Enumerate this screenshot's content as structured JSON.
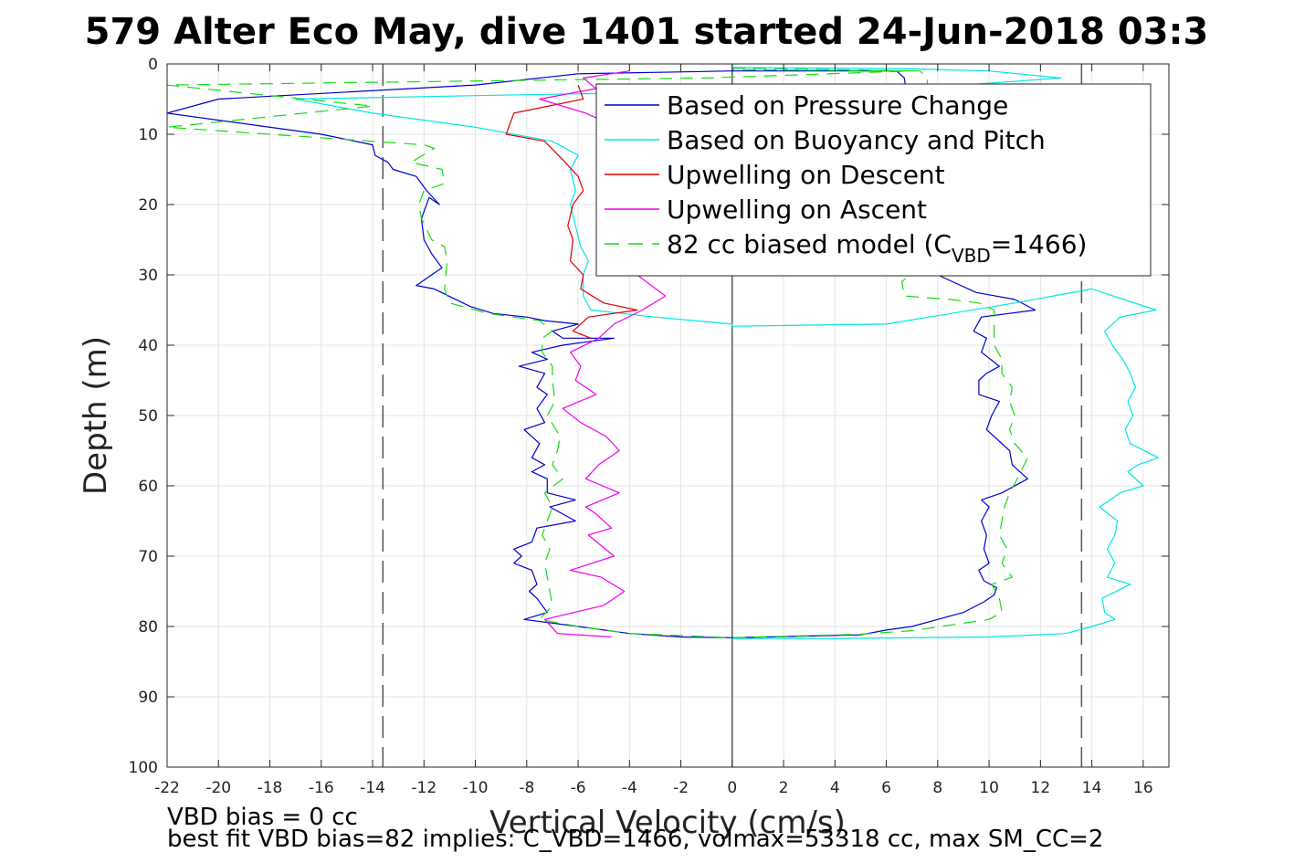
{
  "chart_data": {
    "type": "line",
    "title": "579 Alter Eco May, dive 1401 started 24-Jun-2018 03:3",
    "xlabel": "Vertical Velocity (cm/s)",
    "ylabel": "Depth (m)",
    "xlim": [
      -22,
      17
    ],
    "ylim": [
      0,
      100
    ],
    "y_reversed": true,
    "x_ticks": [
      -22,
      -20,
      -18,
      -16,
      -14,
      -12,
      -10,
      -8,
      -6,
      -4,
      -2,
      0,
      2,
      4,
      6,
      8,
      10,
      12,
      14,
      16
    ],
    "y_ticks": [
      0,
      10,
      20,
      30,
      40,
      50,
      60,
      70,
      80,
      90,
      100
    ],
    "grid": true,
    "legend_position": "top-right",
    "reference_lines": {
      "dashed_x": [
        -13.6,
        13.6
      ],
      "zero_x": 0,
      "color": "#555555"
    },
    "footnotes": [
      "VBD bias = 0 cc",
      "best fit VBD bias=82 implies: C_VBD=1466, volmax=53318 cc, max SM_CC=2"
    ],
    "legend": [
      {
        "key": "pressure",
        "label": "Based on Pressure Change"
      },
      {
        "key": "buoyancy",
        "label": "Based on Buoyancy and Pitch"
      },
      {
        "key": "up_desc",
        "label": "Upwelling on Descent"
      },
      {
        "key": "up_asc",
        "label": "Upwelling on Ascent"
      },
      {
        "key": "model",
        "label_pre": "82 cc biased model (C",
        "label_sub": "VBD",
        "label_post": "=1466)"
      }
    ],
    "series": [
      {
        "name": "Based on Pressure Change",
        "color": "#0000cc",
        "dash": "",
        "points": [
          [
            0,
            1
          ],
          [
            -6,
            1.4
          ],
          [
            -10,
            3
          ],
          [
            -15,
            4
          ],
          [
            -20,
            5
          ],
          [
            -22,
            7
          ],
          [
            -20,
            8
          ],
          [
            -16,
            10
          ],
          [
            -14,
            11.5
          ],
          [
            -13.9,
            13
          ],
          [
            -13.4,
            14
          ],
          [
            -13.2,
            15
          ],
          [
            -12.3,
            16
          ],
          [
            -11.9,
            18
          ],
          [
            -11.4,
            20
          ],
          [
            -11.8,
            19
          ],
          [
            -12.1,
            22
          ],
          [
            -12,
            25
          ],
          [
            -11.7,
            27
          ],
          [
            -11.3,
            29
          ],
          [
            -11.7,
            30
          ],
          [
            -12.3,
            31.5
          ],
          [
            -11.6,
            32
          ],
          [
            -10.2,
            34.5
          ],
          [
            -9.3,
            35.5
          ],
          [
            -8,
            36
          ],
          [
            -7.3,
            36.5
          ],
          [
            -6,
            37
          ],
          [
            -7,
            38
          ],
          [
            -6.6,
            39
          ],
          [
            -4.6,
            39
          ],
          [
            -6.6,
            40
          ],
          [
            -7.8,
            41
          ],
          [
            -7.2,
            42
          ],
          [
            -8.3,
            43
          ],
          [
            -7.3,
            44
          ],
          [
            -7.6,
            46
          ],
          [
            -7.2,
            47
          ],
          [
            -7.6,
            49
          ],
          [
            -7.3,
            51
          ],
          [
            -8.1,
            52
          ],
          [
            -7.5,
            54
          ],
          [
            -7.8,
            56
          ],
          [
            -7.3,
            57
          ],
          [
            -7.8,
            58
          ],
          [
            -7.2,
            59
          ],
          [
            -7.2,
            61
          ],
          [
            -6.1,
            62
          ],
          [
            -7.1,
            63
          ],
          [
            -6.1,
            65
          ],
          [
            -7.6,
            66
          ],
          [
            -7.8,
            68
          ],
          [
            -8.5,
            69
          ],
          [
            -8.2,
            70
          ],
          [
            -8.5,
            71
          ],
          [
            -7.8,
            72
          ],
          [
            -7.6,
            74
          ],
          [
            -7.9,
            75
          ],
          [
            -7.6,
            76
          ],
          [
            -7.2,
            78
          ],
          [
            -8.1,
            79
          ],
          [
            -6,
            80
          ],
          [
            -4,
            81
          ],
          [
            -2,
            81.5
          ],
          [
            0,
            81.6
          ],
          [
            5,
            81.2
          ],
          [
            6,
            80.5
          ],
          [
            7,
            80
          ],
          [
            8,
            79
          ],
          [
            9,
            78
          ],
          [
            9.8,
            76.5
          ],
          [
            10.2,
            75.5
          ],
          [
            10.3,
            74.5
          ],
          [
            9.8,
            73.5
          ],
          [
            9.6,
            72
          ],
          [
            10,
            71
          ],
          [
            9.8,
            69
          ],
          [
            9.9,
            67
          ],
          [
            9.7,
            65
          ],
          [
            10,
            63
          ],
          [
            9.7,
            62
          ],
          [
            10.5,
            61
          ],
          [
            11.5,
            59
          ],
          [
            10.9,
            57
          ],
          [
            10.8,
            55
          ],
          [
            10.2,
            53
          ],
          [
            9.9,
            52
          ],
          [
            10.1,
            50
          ],
          [
            10.4,
            48
          ],
          [
            9.6,
            47
          ],
          [
            9.6,
            45
          ],
          [
            9.9,
            44
          ],
          [
            10.4,
            43
          ],
          [
            9.7,
            41
          ],
          [
            9.9,
            39
          ],
          [
            9.4,
            38
          ],
          [
            9.7,
            36
          ],
          [
            11.8,
            35
          ],
          [
            11,
            33.5
          ],
          [
            9.5,
            32.5
          ],
          [
            8,
            30
          ],
          [
            7,
            28
          ],
          [
            6.5,
            25
          ],
          [
            6.7,
            20
          ],
          [
            7,
            10
          ],
          [
            6.7,
            2
          ],
          [
            6.4,
            1
          ],
          [
            0,
            1
          ]
        ]
      },
      {
        "name": "Based on Buoyancy and Pitch",
        "color": "#00e5e5",
        "dash": "",
        "points": [
          [
            0,
            0.5
          ],
          [
            7,
            0.7
          ],
          [
            10,
            1
          ],
          [
            12.8,
            2
          ],
          [
            9,
            3
          ],
          [
            5,
            3.5
          ],
          [
            -2,
            4
          ],
          [
            -10,
            4.5
          ],
          [
            -17,
            5
          ],
          [
            -14,
            7
          ],
          [
            -10,
            9
          ],
          [
            -7,
            11
          ],
          [
            -6,
            13
          ],
          [
            -6.3,
            15
          ],
          [
            -6.1,
            18
          ],
          [
            -6.3,
            20
          ],
          [
            -6.1,
            23
          ],
          [
            -5.9,
            26
          ],
          [
            -5.6,
            28
          ],
          [
            -5.8,
            30
          ],
          [
            -5.8,
            33
          ],
          [
            -5.5,
            35
          ],
          [
            -3,
            36
          ],
          [
            0,
            37
          ],
          [
            0,
            37.3
          ],
          [
            6,
            37
          ],
          [
            11,
            34
          ],
          [
            12.5,
            33
          ],
          [
            14,
            32
          ],
          [
            16.5,
            35
          ],
          [
            15.1,
            36
          ],
          [
            14.5,
            38
          ],
          [
            14.8,
            40
          ],
          [
            15.2,
            42
          ],
          [
            15.5,
            44
          ],
          [
            15.7,
            46
          ],
          [
            15.4,
            48
          ],
          [
            15.6,
            50
          ],
          [
            15.3,
            52
          ],
          [
            15.5,
            54
          ],
          [
            16.6,
            56
          ],
          [
            15.8,
            57
          ],
          [
            15.4,
            58
          ],
          [
            16,
            60
          ],
          [
            15.1,
            61
          ],
          [
            14.3,
            63
          ],
          [
            15,
            65
          ],
          [
            14.9,
            67
          ],
          [
            14.6,
            69
          ],
          [
            14.9,
            71
          ],
          [
            14.6,
            73
          ],
          [
            15.5,
            74
          ],
          [
            14.4,
            76
          ],
          [
            14.5,
            78
          ],
          [
            14.9,
            79
          ],
          [
            14,
            80
          ],
          [
            13,
            81
          ],
          [
            10,
            81.5
          ],
          [
            4,
            81.7
          ],
          [
            0,
            81.7
          ]
        ]
      },
      {
        "name": "Upwelling on Descent",
        "color": "#e00000",
        "dash": "",
        "points": [
          [
            -6,
            3
          ],
          [
            -5.8,
            5
          ],
          [
            -8.5,
            7
          ],
          [
            -8.8,
            10
          ],
          [
            -7.3,
            11
          ],
          [
            -6.5,
            14
          ],
          [
            -6,
            16
          ],
          [
            -5.8,
            18
          ],
          [
            -6.2,
            20
          ],
          [
            -6.4,
            23
          ],
          [
            -6.2,
            25
          ],
          [
            -6.3,
            28
          ],
          [
            -5.8,
            30
          ],
          [
            -5.9,
            32
          ],
          [
            -5,
            34
          ],
          [
            -3.7,
            35
          ],
          [
            -5.6,
            36
          ],
          [
            -6.2,
            38
          ],
          [
            -5.5,
            39
          ]
        ]
      },
      {
        "name": "Upwelling on Ascent",
        "color": "#ee00ee",
        "dash": "",
        "points": [
          [
            -4,
            1
          ],
          [
            -5.8,
            2
          ],
          [
            -5.3,
            3.5
          ],
          [
            -7.5,
            5
          ],
          [
            -5.7,
            7
          ],
          [
            -4.5,
            9
          ],
          [
            -4.8,
            12
          ],
          [
            -5,
            14
          ],
          [
            -4.5,
            16
          ],
          [
            -4.6,
            20
          ],
          [
            -4,
            23
          ],
          [
            -4.3,
            26
          ],
          [
            -3.9,
            28
          ],
          [
            -3.7,
            30
          ],
          [
            -2.6,
            33
          ],
          [
            -3.5,
            35
          ],
          [
            -4.6,
            37
          ],
          [
            -5.2,
            39
          ],
          [
            -6.3,
            41
          ],
          [
            -5.9,
            43
          ],
          [
            -6.1,
            45
          ],
          [
            -5.3,
            47
          ],
          [
            -6.6,
            49
          ],
          [
            -5.9,
            51
          ],
          [
            -4.9,
            53
          ],
          [
            -4.4,
            55
          ],
          [
            -5.2,
            57
          ],
          [
            -5.7,
            59
          ],
          [
            -4.4,
            61
          ],
          [
            -5.7,
            63
          ],
          [
            -5.3,
            64
          ],
          [
            -4.7,
            66
          ],
          [
            -5.6,
            67
          ],
          [
            -4.6,
            70
          ],
          [
            -6.3,
            72
          ],
          [
            -5.1,
            73
          ],
          [
            -4.2,
            75
          ],
          [
            -5,
            77
          ],
          [
            -7.3,
            79
          ],
          [
            -6.8,
            81
          ],
          [
            -4.7,
            81.5
          ]
        ]
      },
      {
        "name": "82 cc biased model (C_VBD=1466)",
        "color": "#11dd11",
        "dash": "14,9",
        "points": [
          [
            0,
            0.6
          ],
          [
            7,
            1
          ],
          [
            -1,
            2
          ],
          [
            -22,
            3
          ],
          [
            -14,
            6
          ],
          [
            -22,
            9
          ],
          [
            -12,
            11.5
          ],
          [
            -11.6,
            12
          ],
          [
            -12.5,
            14
          ],
          [
            -11.3,
            15
          ],
          [
            -11.2,
            17
          ],
          [
            -12,
            18
          ],
          [
            -12.2,
            20
          ],
          [
            -12.1,
            22
          ],
          [
            -11.7,
            25
          ],
          [
            -11.2,
            26
          ],
          [
            -11.1,
            28
          ],
          [
            -11.2,
            32
          ],
          [
            -11,
            34
          ],
          [
            -9.5,
            35.5
          ],
          [
            -7.5,
            36.5
          ],
          [
            -7,
            38
          ],
          [
            -7.4,
            39
          ],
          [
            -7.4,
            41
          ],
          [
            -7,
            43
          ],
          [
            -7,
            45
          ],
          [
            -6.9,
            48
          ],
          [
            -7.2,
            50
          ],
          [
            -6.7,
            53
          ],
          [
            -6.8,
            55
          ],
          [
            -7,
            57
          ],
          [
            -6.6,
            59
          ],
          [
            -7.3,
            61
          ],
          [
            -7,
            63
          ],
          [
            -7.2,
            65
          ],
          [
            -7.4,
            67
          ],
          [
            -7.1,
            69
          ],
          [
            -7.3,
            71
          ],
          [
            -7.2,
            73
          ],
          [
            -7.1,
            75
          ],
          [
            -7,
            77
          ],
          [
            -7.5,
            79
          ],
          [
            -6,
            80
          ],
          [
            -4,
            81
          ],
          [
            0,
            81.6
          ],
          [
            5,
            81.1
          ],
          [
            7,
            80.6
          ],
          [
            10,
            79
          ],
          [
            10.5,
            78
          ],
          [
            10.4,
            76
          ],
          [
            10.1,
            74
          ],
          [
            10.9,
            73
          ],
          [
            10.5,
            71
          ],
          [
            10.7,
            69
          ],
          [
            10.4,
            67
          ],
          [
            10.5,
            65
          ],
          [
            10.6,
            63
          ],
          [
            10.8,
            61
          ],
          [
            11.1,
            59
          ],
          [
            11.5,
            56
          ],
          [
            11,
            54
          ],
          [
            10.8,
            52
          ],
          [
            11,
            50
          ],
          [
            10.8,
            48
          ],
          [
            10.9,
            46
          ],
          [
            10.5,
            44
          ],
          [
            10.5,
            42
          ],
          [
            10.2,
            40
          ],
          [
            10.2,
            38
          ],
          [
            10.2,
            35
          ],
          [
            9.6,
            34
          ],
          [
            8.5,
            33.5
          ],
          [
            6.7,
            33
          ],
          [
            6.6,
            31
          ],
          [
            7.5,
            28
          ],
          [
            7,
            20
          ],
          [
            7.5,
            10
          ],
          [
            7.6,
            2
          ],
          [
            7.3,
            1
          ],
          [
            0,
            0.8
          ]
        ]
      }
    ]
  }
}
